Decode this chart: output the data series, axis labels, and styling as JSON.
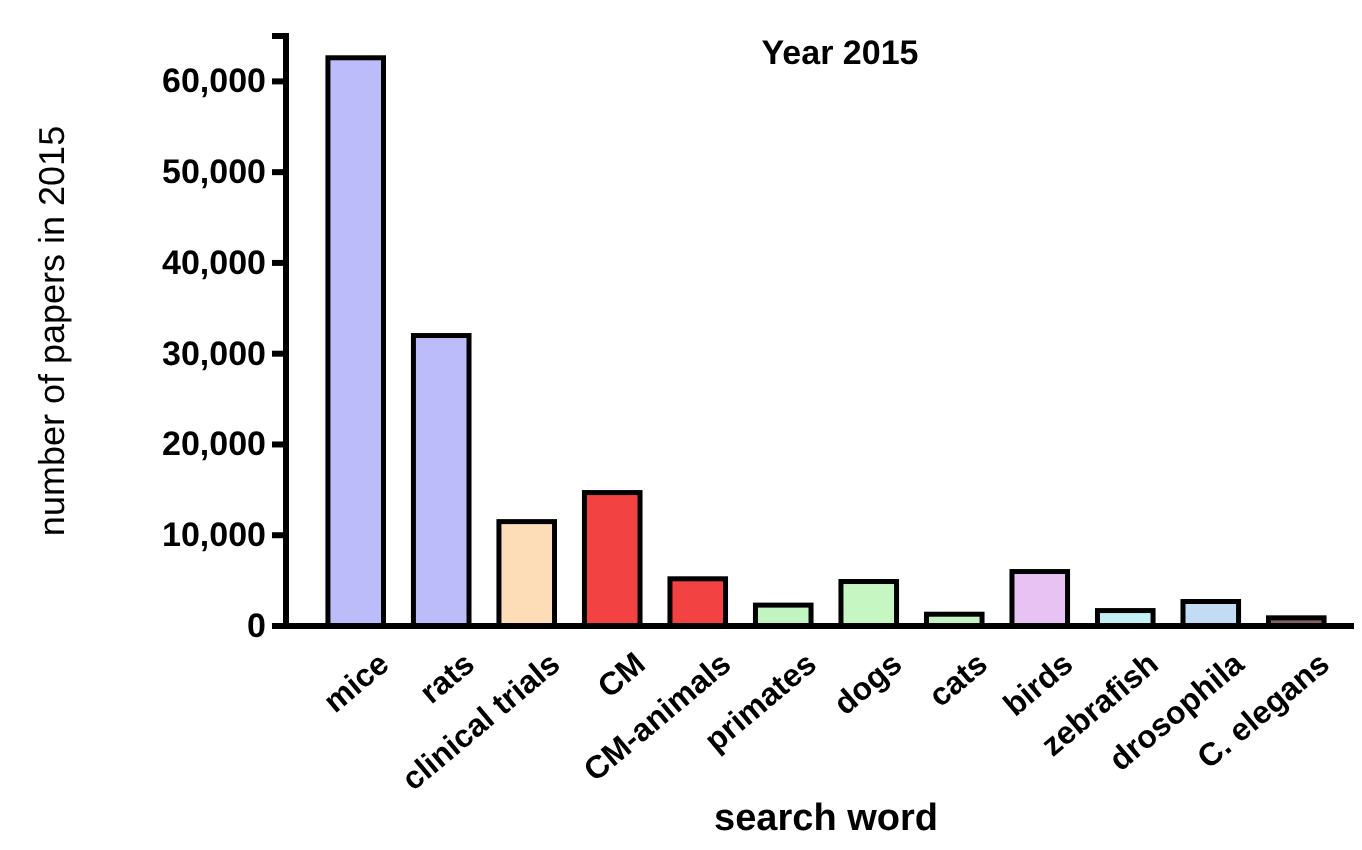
{
  "chart_data": {
    "type": "bar",
    "title": "Year 2015",
    "xlabel": "search word",
    "ylabel": "number of papers in 2015",
    "categories": [
      "mice",
      "rats",
      "clinical trials",
      "CM",
      "CM-animals",
      "primates",
      "dogs",
      "cats",
      "birds",
      "zebrafish",
      "drosophila",
      "C. elegans"
    ],
    "values": [
      62600,
      32000,
      11500,
      14700,
      5200,
      2300,
      4900,
      1300,
      6000,
      1700,
      2700,
      900
    ],
    "colors": [
      "#bcbcfa",
      "#bcbcfa",
      "#fddcb8",
      "#f24242",
      "#f24242",
      "#c2f4c2",
      "#c6f6c2",
      "#c2f4c2",
      "#e8c2f2",
      "#c2f0f4",
      "#c2dcf4",
      "#80606e"
    ],
    "ylim": [
      0,
      65000
    ],
    "yticks": [
      {
        "value": 0,
        "label": "0"
      },
      {
        "value": 10000,
        "label": "10,000"
      },
      {
        "value": 20000,
        "label": "20,000"
      },
      {
        "value": 30000,
        "label": "30,000"
      },
      {
        "value": 40000,
        "label": "40,000"
      },
      {
        "value": 50000,
        "label": "50,000"
      },
      {
        "value": 60000,
        "label": "60,000"
      }
    ],
    "grid": false
  }
}
